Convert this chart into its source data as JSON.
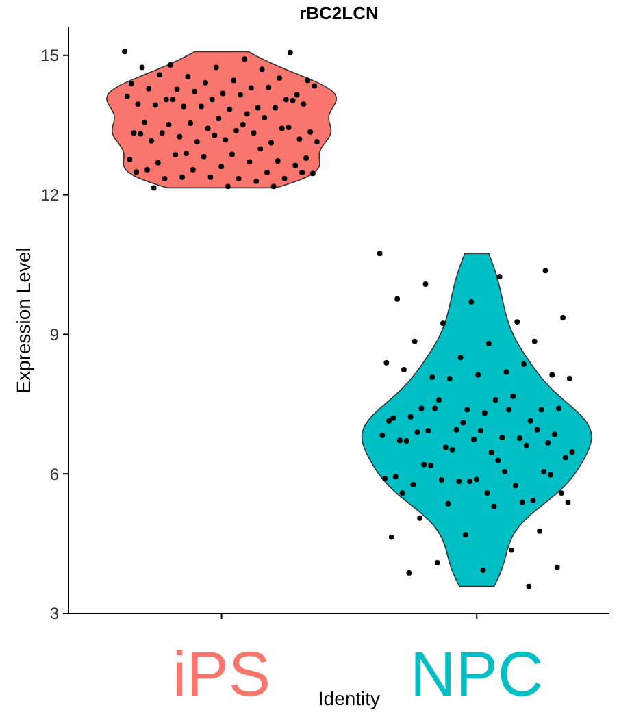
{
  "chart_data": {
    "type": "scatter",
    "title": "rBC2LCN",
    "xlabel": "Identity",
    "ylabel": "Expression Level",
    "categories": [
      "iPS",
      "NPC"
    ],
    "ylim": [
      3,
      15.6
    ],
    "yticks": [
      3,
      6,
      9,
      12,
      15
    ],
    "grid": false,
    "marker": "circle",
    "colors": [
      "#f8766d",
      "#00bfc4"
    ],
    "series": [
      {
        "color": "#000000",
        "x": [
          "iPS",
          "iPS",
          "iPS",
          "iPS",
          "iPS",
          "iPS",
          "iPS",
          "iPS",
          "iPS",
          "iPS",
          "iPS",
          "iPS",
          "iPS",
          "iPS",
          "iPS",
          "iPS",
          "iPS",
          "iPS",
          "iPS",
          "iPS",
          "iPS",
          "iPS",
          "iPS",
          "iPS",
          "iPS",
          "iPS",
          "iPS",
          "iPS",
          "iPS",
          "iPS",
          "iPS",
          "iPS",
          "iPS",
          "iPS",
          "iPS",
          "iPS",
          "iPS",
          "iPS",
          "iPS",
          "iPS",
          "iPS",
          "iPS",
          "iPS",
          "iPS",
          "iPS",
          "iPS",
          "iPS",
          "iPS",
          "iPS",
          "iPS",
          "iPS",
          "iPS",
          "iPS",
          "iPS",
          "iPS",
          "iPS",
          "iPS",
          "iPS",
          "iPS",
          "iPS",
          "iPS",
          "iPS",
          "iPS",
          "iPS",
          "iPS",
          "iPS",
          "iPS",
          "iPS",
          "iPS",
          "iPS",
          "iPS",
          "iPS",
          "iPS",
          "iPS",
          "iPS",
          "iPS",
          "iPS",
          "iPS",
          "iPS",
          "iPS",
          "iPS",
          "iPS",
          "iPS",
          "iPS",
          "iPS",
          "iPS",
          "iPS",
          "iPS"
        ],
        "values": [
          15.08,
          14.92,
          14.79,
          15.06,
          14.74,
          14.74,
          14.7,
          14.54,
          14.46,
          14.46,
          14.58,
          14.51,
          14.41,
          14.39,
          14.3,
          14.27,
          14.15,
          14.18,
          14.28,
          14.31,
          14.22,
          14.34,
          14.15,
          14.05,
          14.05,
          14.05,
          13.95,
          13.87,
          13.9,
          13.95,
          13.84,
          13.93,
          13.87,
          13.9,
          14.12,
          13.74,
          14.05,
          14.03,
          13.64,
          13.56,
          13.66,
          13.54,
          13.35,
          13.38,
          13.33,
          13.43,
          13.43,
          13.33,
          13.33,
          13.25,
          13.2,
          13.18,
          13.16,
          13.12,
          13.14,
          13.14,
          13.51,
          13.51,
          13.45,
          13.28,
          13.31,
          12.99,
          12.89,
          12.79,
          12.87,
          12.69,
          12.73,
          12.82,
          12.76,
          12.71,
          12.86,
          12.63,
          12.61,
          12.54,
          12.48,
          12.54,
          12.46,
          12.35,
          12.35,
          12.35,
          12.38,
          12.49,
          12.29,
          12.38,
          12.48,
          12.18,
          12.15,
          12.18
        ]
      },
      {
        "color": "#000000",
        "x": [
          "NPC",
          "NPC",
          "NPC",
          "NPC",
          "NPC",
          "NPC",
          "NPC",
          "NPC",
          "NPC",
          "NPC",
          "NPC",
          "NPC",
          "NPC",
          "NPC",
          "NPC",
          "NPC",
          "NPC",
          "NPC",
          "NPC",
          "NPC",
          "NPC",
          "NPC",
          "NPC",
          "NPC",
          "NPC",
          "NPC",
          "NPC",
          "NPC",
          "NPC",
          "NPC",
          "NPC",
          "NPC",
          "NPC",
          "NPC",
          "NPC",
          "NPC",
          "NPC",
          "NPC",
          "NPC",
          "NPC",
          "NPC",
          "NPC",
          "NPC",
          "NPC",
          "NPC",
          "NPC",
          "NPC",
          "NPC",
          "NPC",
          "NPC",
          "NPC",
          "NPC",
          "NPC",
          "NPC",
          "NPC",
          "NPC",
          "NPC",
          "NPC",
          "NPC",
          "NPC",
          "NPC",
          "NPC",
          "NPC",
          "NPC",
          "NPC",
          "NPC",
          "NPC",
          "NPC",
          "NPC",
          "NPC",
          "NPC",
          "NPC",
          "NPC",
          "NPC",
          "NPC",
          "NPC",
          "NPC",
          "NPC",
          "NPC",
          "NPC",
          "NPC",
          "NPC",
          "NPC",
          "NPC",
          "NPC",
          "NPC",
          "NPC",
          "NPC"
        ],
        "values": [
          10.74,
          10.24,
          10.08,
          10.37,
          9.7,
          9.76,
          9.27,
          9.24,
          9.36,
          8.8,
          8.85,
          8.85,
          8.5,
          8.39,
          8.19,
          8.08,
          8.13,
          8.13,
          8.24,
          8.36,
          8.05,
          8.05,
          7.59,
          7.41,
          7.38,
          7.38,
          7.2,
          7.67,
          7.59,
          7.41,
          7.31,
          7.23,
          7.14,
          6.95,
          6.83,
          6.78,
          6.93,
          6.67,
          6.74,
          6.72,
          6.77,
          6.57,
          6.35,
          6.46,
          6.9,
          6.95,
          7.1,
          7.14,
          7.38,
          7.41,
          6.85,
          6.93,
          6.71,
          6.61,
          6.52,
          6.47,
          6.29,
          6.2,
          6.05,
          5.84,
          5.94,
          5.75,
          5.87,
          5.59,
          5.59,
          5.77,
          5.43,
          5.84,
          5.9,
          6.05,
          6.18,
          5.98,
          5.88,
          5.59,
          5.39,
          5.36,
          5.39,
          5.3,
          5.05,
          4.77,
          4.69,
          4.64,
          4.36,
          4.09,
          3.99,
          3.93,
          3.87,
          3.58
        ]
      }
    ]
  }
}
